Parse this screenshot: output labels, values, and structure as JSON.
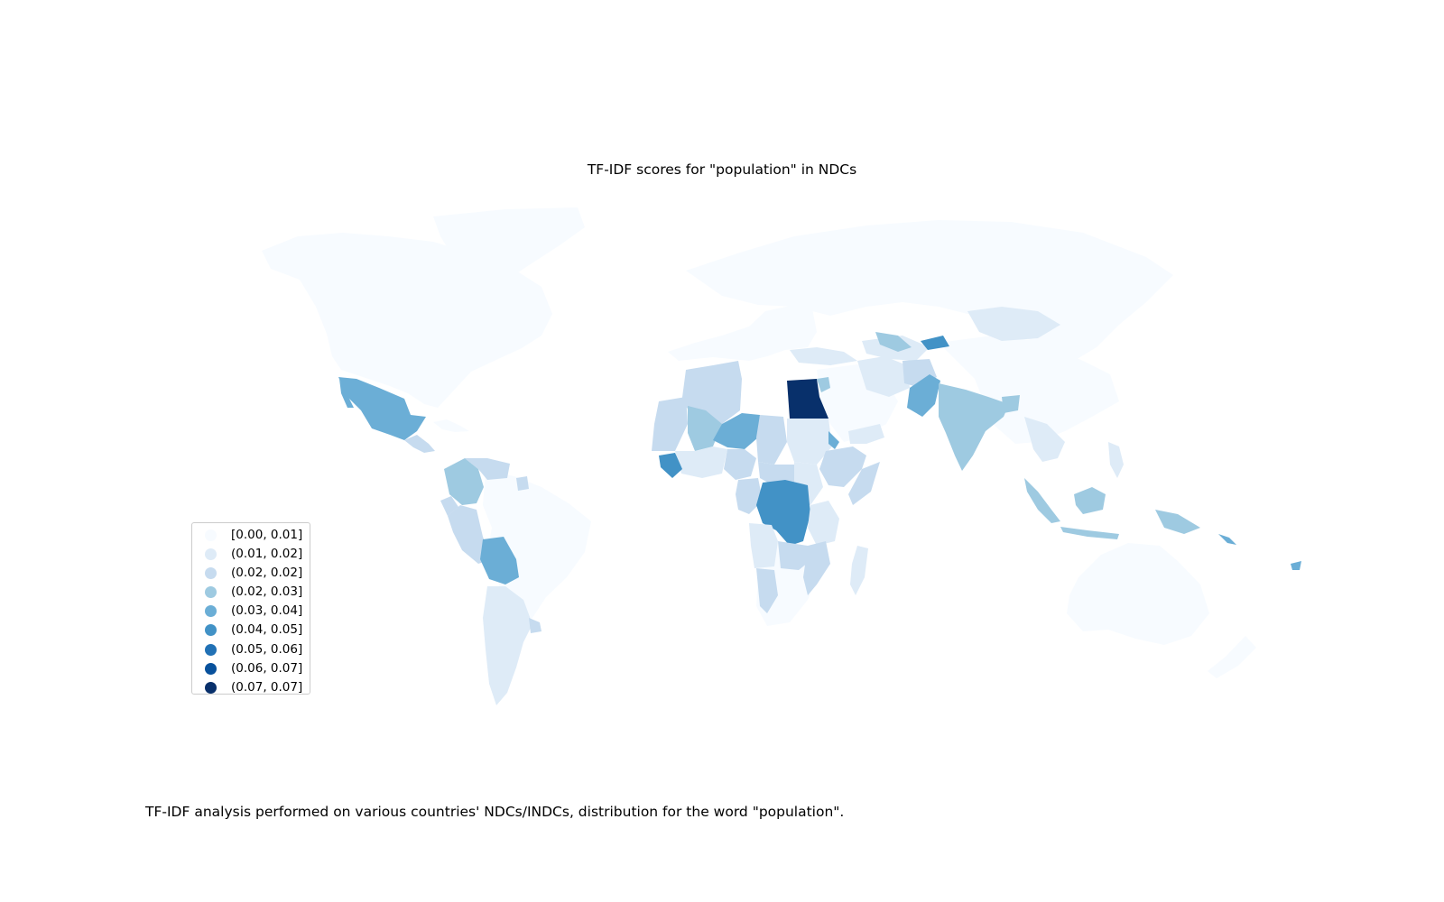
{
  "title": "TF-IDF scores for \"population\" in NDCs",
  "caption": "TF-IDF analysis performed on various countries' NDCs/INDCs, distribution for the word \"population\".",
  "colors": {
    "bin_0": "#f7fbff",
    "bin_1": "#deebf7",
    "bin_2": "#c6dbef",
    "bin_3": "#9ecae1",
    "bin_4": "#6baed6",
    "bin_5": "#4292c6",
    "bin_6": "#2171b5",
    "bin_7": "#08519c",
    "bin_8": "#08306b"
  },
  "legend": {
    "items": [
      {
        "label": "[0.00, 0.01]",
        "color": "#f7fbff"
      },
      {
        "label": "(0.01, 0.02]",
        "color": "#deebf7"
      },
      {
        "label": "(0.02, 0.02]",
        "color": "#c6dbef"
      },
      {
        "label": "(0.02, 0.03]",
        "color": "#9ecae1"
      },
      {
        "label": "(0.03, 0.04]",
        "color": "#6baed6"
      },
      {
        "label": "(0.04, 0.05]",
        "color": "#4292c6"
      },
      {
        "label": "(0.05, 0.06]",
        "color": "#2171b5"
      },
      {
        "label": "(0.06, 0.07]",
        "color": "#08519c"
      },
      {
        "label": "(0.07, 0.07]",
        "color": "#08306b"
      }
    ]
  }
}
